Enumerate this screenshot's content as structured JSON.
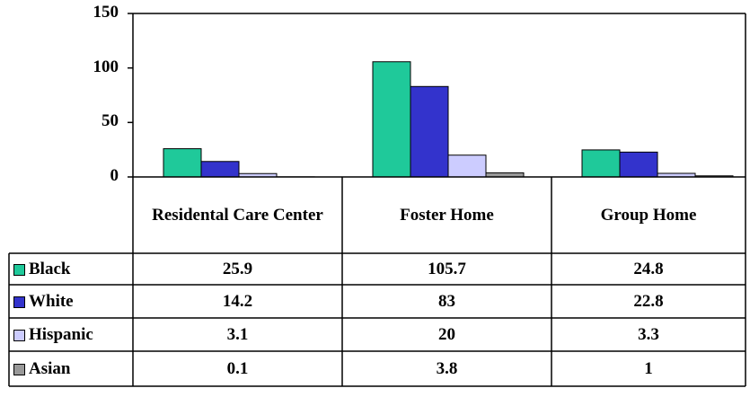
{
  "chart_data": {
    "type": "bar",
    "categories": [
      "Residental Care Center",
      "Foster Home",
      "Group Home"
    ],
    "series": [
      {
        "name": "Black",
        "color": "#1fc99a",
        "values": [
          25.9,
          105.7,
          24.8
        ]
      },
      {
        "name": "White",
        "color": "#3333cc",
        "values": [
          14.2,
          83,
          22.8
        ]
      },
      {
        "name": "Hispanic",
        "color": "#ccccff",
        "values": [
          3.1,
          20,
          3.3
        ]
      },
      {
        "name": "Asian",
        "color": "#999999",
        "values": [
          0.1,
          3.8,
          1
        ]
      }
    ],
    "ylim": [
      0,
      150
    ],
    "yticks": [
      0,
      50,
      100,
      150
    ],
    "grid": false
  }
}
